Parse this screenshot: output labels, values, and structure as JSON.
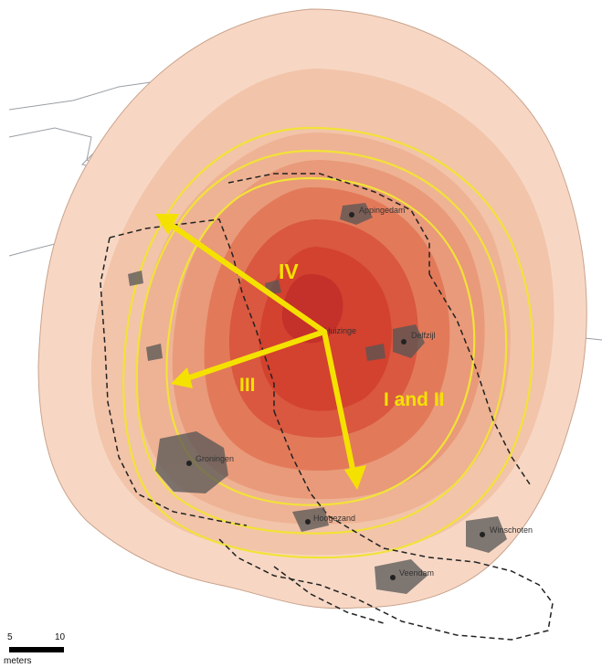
{
  "colors": {
    "background": "#ffffff",
    "outer_zone": "#f7d7c4",
    "mid_zone": "#eeb394",
    "inner_zone": "#e27a5a",
    "core_zone": "#d3412f",
    "epicenter": "#c4302a",
    "contour_yellow": "#f2e238",
    "arrow_yellow": "#f5e100",
    "settlement_gray": "#555555",
    "boundary_dashed": "#222222",
    "coastline": "#9aa0a6"
  },
  "zones": {
    "zone_iv": "IV",
    "zone_iii": "III",
    "zone_i_ii": "I and II"
  },
  "places": {
    "appingedam_label": "Appingedam",
    "delfzijl_label": "Delfzijl",
    "huizinge_label": "Huizinge",
    "groningen_label": "Groningen",
    "hoogezand_label": "Hoogezand",
    "veendam_label": "Veendam",
    "winschoten_label": "Winschoten"
  },
  "scale_bar": {
    "tick_5": "5",
    "tick_10": "10",
    "unit": "meters"
  },
  "icons": [
    "direction-arrow",
    "town-marker",
    "scale-bar"
  ]
}
